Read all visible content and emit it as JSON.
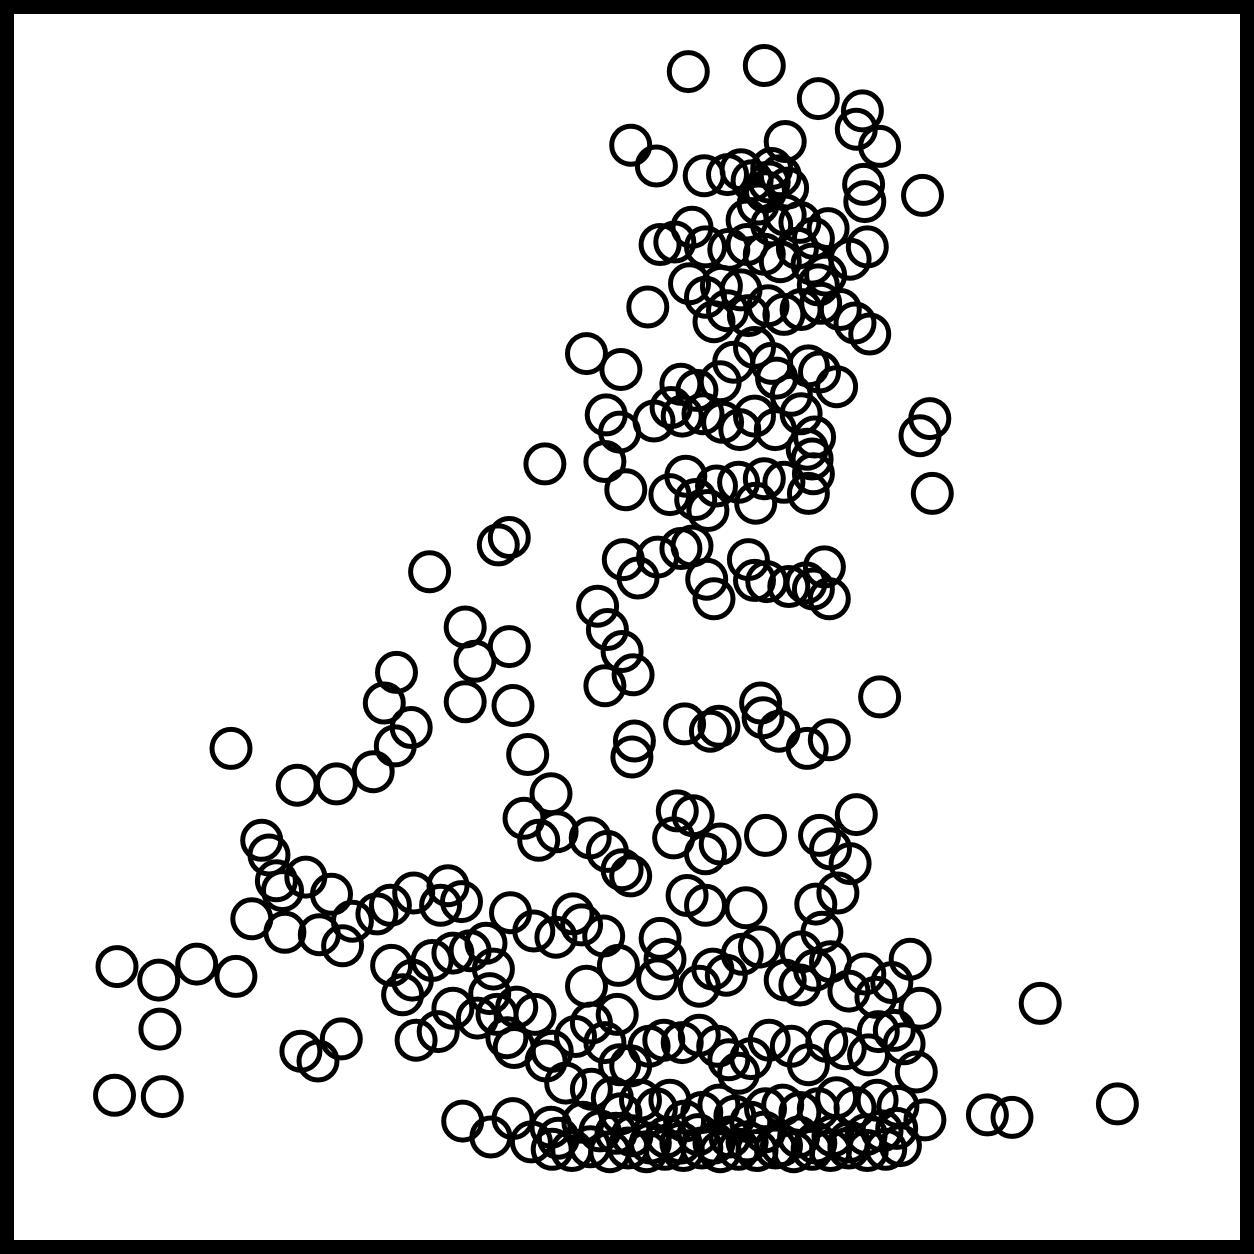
{
  "chart_data": {
    "type": "scatter",
    "title": "",
    "xlabel": "",
    "ylabel": "",
    "xlim": [
      0,
      100
    ],
    "ylim": [
      0,
      100
    ],
    "grid": false,
    "legend": "none",
    "marker": "open-circle",
    "colors": {
      "marker": "#000000",
      "frame": "#000000",
      "background": "#ffffff"
    },
    "points": [
      [
        55,
        95.3
      ],
      [
        61.2,
        95.8
      ],
      [
        65.6,
        93.1
      ],
      [
        69.2,
        92.1
      ],
      [
        68.7,
        90.6
      ],
      [
        70.6,
        89.2
      ],
      [
        62.9,
        89.6
      ],
      [
        61.8,
        87.4
      ],
      [
        61.3,
        85.5
      ],
      [
        69.4,
        84.7
      ],
      [
        69.3,
        86.1
      ],
      [
        74.1,
        85.2
      ],
      [
        50.3,
        89.3
      ],
      [
        52.4,
        87.6
      ],
      [
        56.3,
        86.8
      ],
      [
        58.2,
        86.9
      ],
      [
        59.3,
        87.3
      ],
      [
        60.2,
        86.4
      ],
      [
        61.6,
        86.3
      ],
      [
        62.5,
        86.8
      ],
      [
        63.1,
        85.8
      ],
      [
        60.7,
        84.5
      ],
      [
        59.8,
        83.2
      ],
      [
        61.8,
        82.8
      ],
      [
        62.9,
        83.6
      ],
      [
        64.1,
        83.0
      ],
      [
        65.2,
        81.7
      ],
      [
        66.4,
        82.5
      ],
      [
        55.3,
        82.6
      ],
      [
        53.9,
        81.4
      ],
      [
        52.7,
        81.2
      ],
      [
        56.4,
        81.0
      ],
      [
        58.3,
        80.8
      ],
      [
        59.8,
        81.2
      ],
      [
        61.2,
        80.4
      ],
      [
        62.5,
        79.8
      ],
      [
        63.9,
        80.9
      ],
      [
        65.1,
        79.6
      ],
      [
        66.2,
        78.7
      ],
      [
        65.6,
        77.9
      ],
      [
        69.6,
        81.0
      ],
      [
        68.2,
        80.0
      ],
      [
        55.1,
        78.0
      ],
      [
        56.4,
        76.9
      ],
      [
        57.7,
        77.8
      ],
      [
        59.3,
        77.5
      ],
      [
        58.2,
        75.8
      ],
      [
        57.1,
        74.9
      ],
      [
        59.9,
        75.4
      ],
      [
        61.5,
        76.2
      ],
      [
        62.8,
        75.5
      ],
      [
        64.2,
        75.9
      ],
      [
        65.8,
        76.4
      ],
      [
        67.4,
        75.9
      ],
      [
        68.6,
        74.8
      ],
      [
        69.8,
        73.9
      ],
      [
        51.7,
        76.1
      ],
      [
        46.7,
        72.3
      ],
      [
        49.5,
        71.0
      ],
      [
        54.4,
        69.8
      ],
      [
        55.7,
        69.3
      ],
      [
        57.6,
        70.0
      ],
      [
        58.7,
        71.6
      ],
      [
        60.4,
        72.8
      ],
      [
        61.8,
        71.5
      ],
      [
        62.2,
        70.3
      ],
      [
        63.4,
        68.9
      ],
      [
        64.8,
        71.3
      ],
      [
        65.7,
        70.8
      ],
      [
        67.1,
        69.6
      ],
      [
        48.3,
        67.3
      ],
      [
        49.4,
        65.9
      ],
      [
        52.2,
        66.8
      ],
      [
        53.6,
        67.9
      ],
      [
        54.5,
        67.2
      ],
      [
        56.2,
        67.4
      ],
      [
        57.8,
        66.7
      ],
      [
        59.2,
        66.1
      ],
      [
        60.4,
        67.2
      ],
      [
        62.1,
        66.1
      ],
      [
        64.2,
        67.4
      ],
      [
        65.3,
        65.5
      ],
      [
        74.7,
        67.0
      ],
      [
        73.9,
        65.6
      ],
      [
        43.3,
        63.3
      ],
      [
        48.2,
        63.5
      ],
      [
        49.9,
        61.2
      ],
      [
        53.5,
        60.8
      ],
      [
        54.8,
        62.3
      ],
      [
        55.6,
        60.4
      ],
      [
        56.6,
        59.5
      ],
      [
        57.3,
        61.5
      ],
      [
        59.1,
        61.8
      ],
      [
        60.5,
        60.1
      ],
      [
        61.2,
        62.1
      ],
      [
        62.8,
        61.8
      ],
      [
        64.8,
        60.9
      ],
      [
        65.2,
        62.5
      ],
      [
        65.1,
        63.7
      ],
      [
        64.7,
        64.5
      ],
      [
        74.9,
        60.9
      ],
      [
        40.4,
        57.3
      ],
      [
        39.5,
        56.7
      ],
      [
        49.7,
        55.5
      ],
      [
        50.9,
        54.0
      ],
      [
        52.5,
        55.7
      ],
      [
        54.4,
        56.4
      ],
      [
        55.3,
        56.6
      ],
      [
        56.5,
        53.9
      ],
      [
        57.1,
        52.3
      ],
      [
        59.9,
        55.5
      ],
      [
        60.4,
        53.8
      ],
      [
        61.4,
        53.7
      ],
      [
        63.2,
        53.3
      ],
      [
        64.6,
        53.6
      ],
      [
        65.2,
        53.1
      ],
      [
        66.1,
        54.9
      ],
      [
        66.5,
        52.3
      ],
      [
        33.9,
        54.5
      ],
      [
        36.8,
        50.0
      ],
      [
        37.6,
        47.2
      ],
      [
        40.4,
        48.4
      ],
      [
        47.6,
        51.7
      ],
      [
        48.4,
        49.8
      ],
      [
        49.6,
        48.0
      ],
      [
        50.5,
        46.1
      ],
      [
        48.2,
        45.2
      ],
      [
        50.6,
        40.7
      ],
      [
        50.4,
        39.4
      ],
      [
        54.7,
        42.1
      ],
      [
        56.8,
        41.5
      ],
      [
        57.5,
        41.9
      ],
      [
        60.9,
        43.8
      ],
      [
        61.1,
        42.6
      ],
      [
        62.4,
        41.5
      ],
      [
        64.7,
        40.1
      ],
      [
        66.5,
        40.8
      ],
      [
        70.6,
        44.3
      ],
      [
        17.7,
        40.1
      ],
      [
        23.1,
        37.1
      ],
      [
        26.3,
        37.2
      ],
      [
        29.3,
        38.2
      ],
      [
        31.1,
        40.3
      ],
      [
        32.4,
        41.8
      ],
      [
        30.2,
        43.8
      ],
      [
        31.2,
        46.3
      ],
      [
        36.8,
        43.9
      ],
      [
        40.7,
        43.6
      ],
      [
        41.9,
        39.6
      ],
      [
        43.8,
        36.4
      ],
      [
        41.6,
        34.4
      ],
      [
        42.8,
        32.6
      ],
      [
        44.3,
        33.3
      ],
      [
        47.0,
        32.8
      ],
      [
        48.4,
        31.7
      ],
      [
        49.6,
        30.2
      ],
      [
        50.3,
        29.7
      ],
      [
        53.8,
        32.8
      ],
      [
        54.1,
        35.0
      ],
      [
        55.4,
        34.6
      ],
      [
        56.4,
        31.5
      ],
      [
        57.6,
        32.3
      ],
      [
        54.9,
        28.1
      ],
      [
        56.4,
        27.3
      ],
      [
        59.7,
        27.1
      ],
      [
        61.3,
        33.0
      ],
      [
        65.7,
        33.0
      ],
      [
        66.6,
        31.9
      ],
      [
        68.7,
        34.7
      ],
      [
        68.2,
        30.7
      ],
      [
        67.2,
        28.3
      ],
      [
        65.4,
        27.4
      ],
      [
        65.9,
        25.1
      ],
      [
        64.2,
        23.5
      ],
      [
        20.8,
        31.4
      ],
      [
        20.2,
        32.6
      ],
      [
        21.4,
        29.3
      ],
      [
        21.9,
        28.5
      ],
      [
        23.8,
        29.6
      ],
      [
        25.9,
        28.2
      ],
      [
        27.6,
        26.0
      ],
      [
        29.6,
        26.6
      ],
      [
        30.7,
        27.3
      ],
      [
        32.6,
        28.3
      ],
      [
        34.8,
        27.3
      ],
      [
        35.4,
        28.9
      ],
      [
        36.5,
        27.6
      ],
      [
        40.5,
        26.7
      ],
      [
        42.4,
        25.2
      ],
      [
        44.2,
        24.7
      ],
      [
        45.6,
        26.6
      ],
      [
        46.3,
        25.7
      ],
      [
        48.1,
        24.8
      ],
      [
        49.3,
        22.4
      ],
      [
        46.7,
        20.7
      ],
      [
        49.2,
        18.4
      ],
      [
        52.5,
        21.3
      ],
      [
        53.1,
        22.9
      ],
      [
        52.7,
        24.6
      ],
      [
        55.9,
        20.7
      ],
      [
        57.0,
        22.1
      ],
      [
        58.1,
        21.6
      ],
      [
        59.4,
        23.3
      ],
      [
        60.8,
        23.9
      ],
      [
        62.9,
        21.2
      ],
      [
        64.1,
        20.8
      ],
      [
        65.3,
        22.0
      ],
      [
        66.6,
        22.7
      ],
      [
        68.1,
        20.3
      ],
      [
        69.4,
        21.7
      ],
      [
        70.3,
        19.8
      ],
      [
        71.6,
        21.0
      ],
      [
        73.1,
        22.9
      ],
      [
        19.4,
        26.2
      ],
      [
        22.1,
        25.1
      ],
      [
        24.9,
        24.9
      ],
      [
        26.8,
        24.0
      ],
      [
        30.8,
        22.4
      ],
      [
        31.7,
        20.0
      ],
      [
        32.5,
        21.2
      ],
      [
        34.1,
        22.8
      ],
      [
        35.8,
        23.4
      ],
      [
        37.2,
        23.6
      ],
      [
        38.5,
        24.2
      ],
      [
        39.1,
        22.1
      ],
      [
        38.8,
        20.1
      ],
      [
        39.4,
        18.4
      ],
      [
        41.0,
        19.0
      ],
      [
        40.2,
        16.5
      ],
      [
        40.8,
        15.7
      ],
      [
        43.4,
        14.6
      ],
      [
        43.9,
        15.4
      ],
      [
        45.8,
        16.6
      ],
      [
        47.1,
        17.7
      ],
      [
        48.2,
        16.1
      ],
      [
        49.4,
        14.3
      ],
      [
        50.3,
        14.2
      ],
      [
        51.8,
        15.8
      ],
      [
        53.0,
        16.3
      ],
      [
        54.5,
        16.1
      ],
      [
        55.9,
        16.7
      ],
      [
        57.4,
        15.8
      ],
      [
        58.3,
        14.7
      ],
      [
        59.1,
        13.6
      ],
      [
        60.1,
        14.8
      ],
      [
        61.6,
        16.3
      ],
      [
        63.4,
        15.8
      ],
      [
        64.8,
        14.3
      ],
      [
        66.3,
        16.2
      ],
      [
        67.8,
        15.6
      ],
      [
        69.7,
        15.1
      ],
      [
        70.5,
        17.0
      ],
      [
        71.8,
        17.1
      ],
      [
        72.6,
        16.0
      ],
      [
        73.9,
        18.9
      ],
      [
        8.2,
        11.8
      ],
      [
        11.9,
        17.2
      ],
      [
        12.1,
        11.7
      ],
      [
        8.4,
        22.3
      ],
      [
        11.8,
        21.2
      ],
      [
        14.9,
        22.5
      ],
      [
        18.1,
        21.5
      ],
      [
        23.4,
        15.4
      ],
      [
        24.8,
        14.6
      ],
      [
        26.7,
        16.4
      ],
      [
        32.8,
        16.3
      ],
      [
        34.6,
        17.0
      ],
      [
        35.8,
        18.9
      ],
      [
        37.8,
        18.1
      ],
      [
        42.5,
        18.4
      ],
      [
        45.0,
        12.8
      ],
      [
        47.1,
        12.3
      ],
      [
        48.8,
        11.6
      ],
      [
        49.5,
        10.3
      ],
      [
        51.1,
        11.4
      ],
      [
        52.4,
        10.7
      ],
      [
        53.5,
        11.4
      ],
      [
        54.7,
        9.7
      ],
      [
        56.1,
        10.4
      ],
      [
        57.5,
        11.0
      ],
      [
        58.8,
        10.1
      ],
      [
        60.1,
        9.6
      ],
      [
        61.3,
        10.7
      ],
      [
        62.7,
        11.0
      ],
      [
        64.1,
        10.4
      ],
      [
        65.6,
        10.7
      ],
      [
        67.1,
        11.6
      ],
      [
        68.6,
        10.8
      ],
      [
        70.4,
        11.4
      ],
      [
        72.1,
        10.9
      ],
      [
        73.6,
        13.7
      ],
      [
        83.7,
        19.3
      ],
      [
        90.0,
        11.1
      ],
      [
        79.4,
        10.2
      ],
      [
        81.4,
        10.0
      ],
      [
        36.6,
        9.7
      ],
      [
        38.9,
        8.4
      ],
      [
        40.7,
        9.9
      ],
      [
        43.8,
        9.2
      ],
      [
        44.4,
        8.3
      ],
      [
        46.4,
        9.6
      ],
      [
        47.8,
        8.9
      ],
      [
        49.1,
        8.7
      ],
      [
        50.4,
        8.5
      ],
      [
        51.9,
        7.9
      ],
      [
        53.2,
        8.4
      ],
      [
        54.4,
        7.9
      ],
      [
        55.8,
        8.6
      ],
      [
        57.1,
        7.9
      ],
      [
        58.4,
        8.4
      ],
      [
        59.8,
        8.0
      ],
      [
        61.2,
        8.8
      ],
      [
        62.6,
        7.7
      ],
      [
        64.0,
        8.4
      ],
      [
        65.4,
        7.9
      ],
      [
        66.8,
        8.5
      ],
      [
        68.1,
        8.0
      ],
      [
        69.5,
        8.6
      ],
      [
        70.8,
        8.9
      ],
      [
        72.0,
        9.1
      ],
      [
        74.3,
        9.8
      ],
      [
        42.2,
        8.0
      ],
      [
        43.9,
        7.4
      ],
      [
        45.5,
        7.3
      ],
      [
        47.0,
        7.6
      ],
      [
        48.6,
        7.2
      ],
      [
        50.1,
        7.5
      ],
      [
        51.6,
        7.2
      ],
      [
        53.1,
        7.4
      ],
      [
        54.6,
        7.3
      ],
      [
        56.1,
        7.5
      ],
      [
        57.6,
        7.2
      ],
      [
        59.1,
        7.4
      ],
      [
        60.6,
        7.3
      ],
      [
        62.1,
        7.5
      ],
      [
        63.6,
        7.2
      ],
      [
        65.1,
        7.4
      ],
      [
        66.6,
        7.3
      ],
      [
        68.1,
        7.5
      ],
      [
        69.6,
        7.3
      ],
      [
        71.1,
        7.4
      ],
      [
        72.3,
        7.7
      ]
    ]
  }
}
